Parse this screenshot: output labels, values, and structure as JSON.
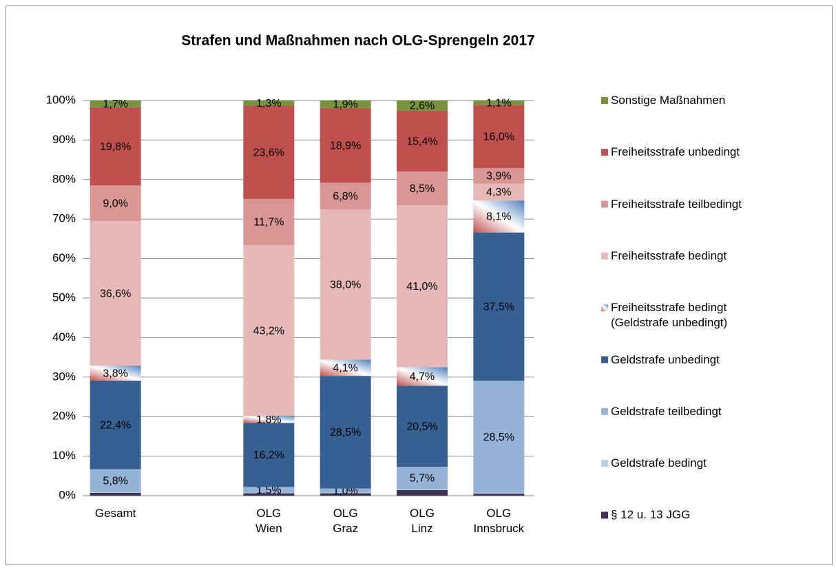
{
  "chart_data": {
    "type": "stacked_bar",
    "title": "Strafen und Maßnahmen nach OLG-Sprengeln 2017",
    "categories": [
      "Gesamt",
      null,
      "OLG\nWien",
      "OLG\nGraz",
      "OLG\nLinz",
      "OLG\nInnsbruck"
    ],
    "ylim": [
      0,
      100
    ],
    "yticks": [
      {
        "value": 0,
        "label": "0%"
      },
      {
        "value": 10,
        "label": "10%"
      },
      {
        "value": 20,
        "label": "20%"
      },
      {
        "value": 30,
        "label": "30%"
      },
      {
        "value": 40,
        "label": "40%"
      },
      {
        "value": 50,
        "label": "50%"
      },
      {
        "value": 60,
        "label": "60%"
      },
      {
        "value": 70,
        "label": "70%"
      },
      {
        "value": 80,
        "label": "80%"
      },
      {
        "value": 90,
        "label": "90%"
      },
      {
        "value": 100,
        "label": "100%"
      }
    ],
    "grid": true,
    "legend": "right",
    "series": [
      {
        "name": "§ 12 u. 13 JGG",
        "color": "#403152",
        "values": [
          0.7,
          null,
          0.6,
          0.6,
          1.4,
          0.5
        ],
        "value_labels": [
          null,
          null,
          null,
          null,
          null,
          null
        ]
      },
      {
        "name": "Geldstrafe bedingt",
        "color": "#b9cde5",
        "values": [
          0.2,
          null,
          0.1,
          0.2,
          0.2,
          0.1
        ],
        "value_labels": [
          null,
          null,
          null,
          null,
          null,
          null
        ]
      },
      {
        "name": "Geldstrafe teilbedingt",
        "color": "#95b3d7",
        "values": [
          5.8,
          null,
          1.5,
          1.0,
          5.7,
          28.5
        ],
        "value_labels": [
          "5,8%",
          null,
          "1,5%",
          "1,0%",
          "5,7%",
          "28,5%"
        ]
      },
      {
        "name": "Geldstrafe unbedingt",
        "color": "#376092",
        "values": [
          22.4,
          null,
          16.2,
          28.5,
          20.5,
          37.5
        ],
        "value_labels": [
          "22,4%",
          null,
          "16,2%",
          "28,5%",
          "20,5%",
          "37,5%"
        ]
      },
      {
        "name": "Freiheitsstrafe bedingt\n(Geldstrafe unbedingt)",
        "color": [
          "#c0504d",
          "#ffffff",
          "#4f81bd"
        ],
        "values": [
          3.8,
          null,
          1.8,
          4.1,
          4.7,
          8.1
        ],
        "value_labels": [
          "3,8%",
          null,
          "1,8%",
          "4,1%",
          "4,7%",
          "8,1%"
        ]
      },
      {
        "name": "Freiheitsstrafe bedingt",
        "color": "#e6b9b8",
        "values": [
          36.6,
          null,
          43.2,
          38.0,
          41.0,
          4.3
        ],
        "value_labels": [
          "36,6%",
          null,
          "43,2%",
          "38,0%",
          "41,0%",
          "4,3%"
        ]
      },
      {
        "name": "Freiheitsstrafe teilbedingt",
        "color": "#d99694",
        "values": [
          9.0,
          null,
          11.7,
          6.8,
          8.5,
          3.9
        ],
        "value_labels": [
          "9,0%",
          null,
          "11,7%",
          "6,8%",
          "8,5%",
          "3,9%"
        ]
      },
      {
        "name": "Freiheitsstrafe unbedingt",
        "color": "#c0504d",
        "values": [
          19.8,
          null,
          23.6,
          18.9,
          15.4,
          16.0
        ],
        "value_labels": [
          "19,8%",
          null,
          "23,6%",
          "18,9%",
          "15,4%",
          "16,0%"
        ]
      },
      {
        "name": "Sonstige Maßnahmen",
        "color": "#77933c",
        "values": [
          1.7,
          null,
          1.3,
          1.9,
          2.6,
          1.1
        ],
        "value_labels": [
          "1,7%",
          null,
          "1,3%",
          "1,9%",
          "2,6%",
          "1,1%"
        ]
      }
    ]
  }
}
